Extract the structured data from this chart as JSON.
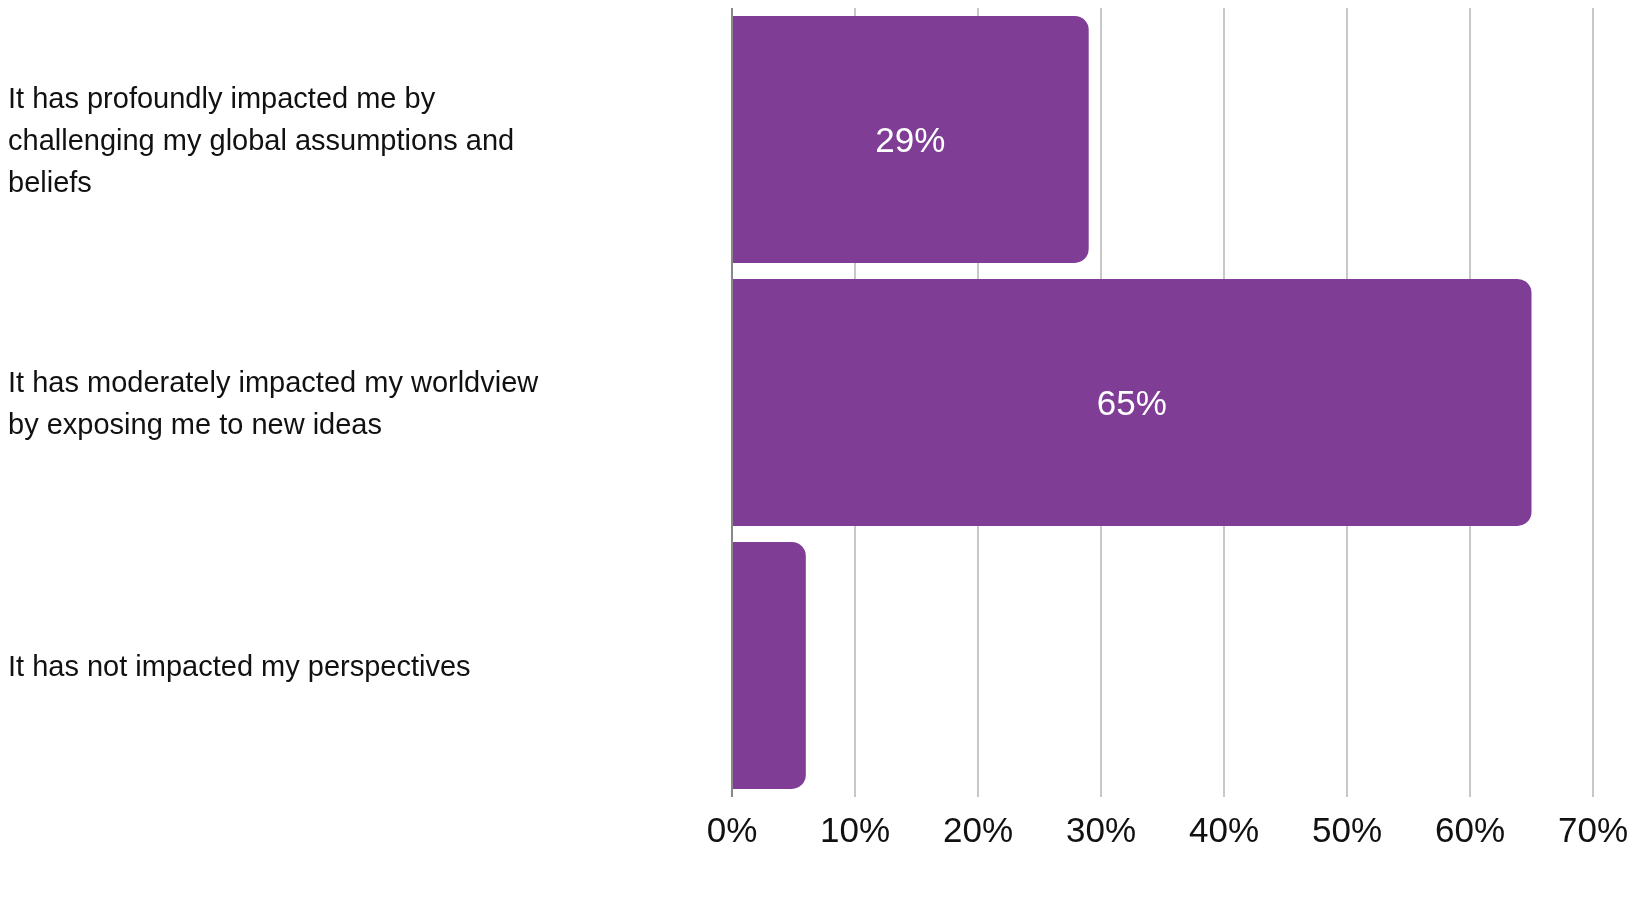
{
  "chart_data": {
    "type": "bar",
    "orientation": "horizontal",
    "categories": [
      "It has profoundly impacted me by challenging my global assumptions and beliefs",
      "It has moderately impacted my worldview by exposing me to new ideas",
      "It has not impacted my perspectives"
    ],
    "values": [
      29,
      65,
      6
    ],
    "value_labels": [
      "29%",
      "65%",
      null
    ],
    "color": "#7f3d96",
    "xlim": [
      0,
      70
    ],
    "xticks": [
      {
        "value": 0,
        "label": "0%"
      },
      {
        "value": 10,
        "label": "10%"
      },
      {
        "value": 20,
        "label": "20%"
      },
      {
        "value": 30,
        "label": "30%"
      },
      {
        "value": 40,
        "label": "40%"
      },
      {
        "value": 50,
        "label": "50%"
      },
      {
        "value": 60,
        "label": "60%"
      },
      {
        "value": 70,
        "label": "70%"
      }
    ],
    "grid": "x"
  }
}
